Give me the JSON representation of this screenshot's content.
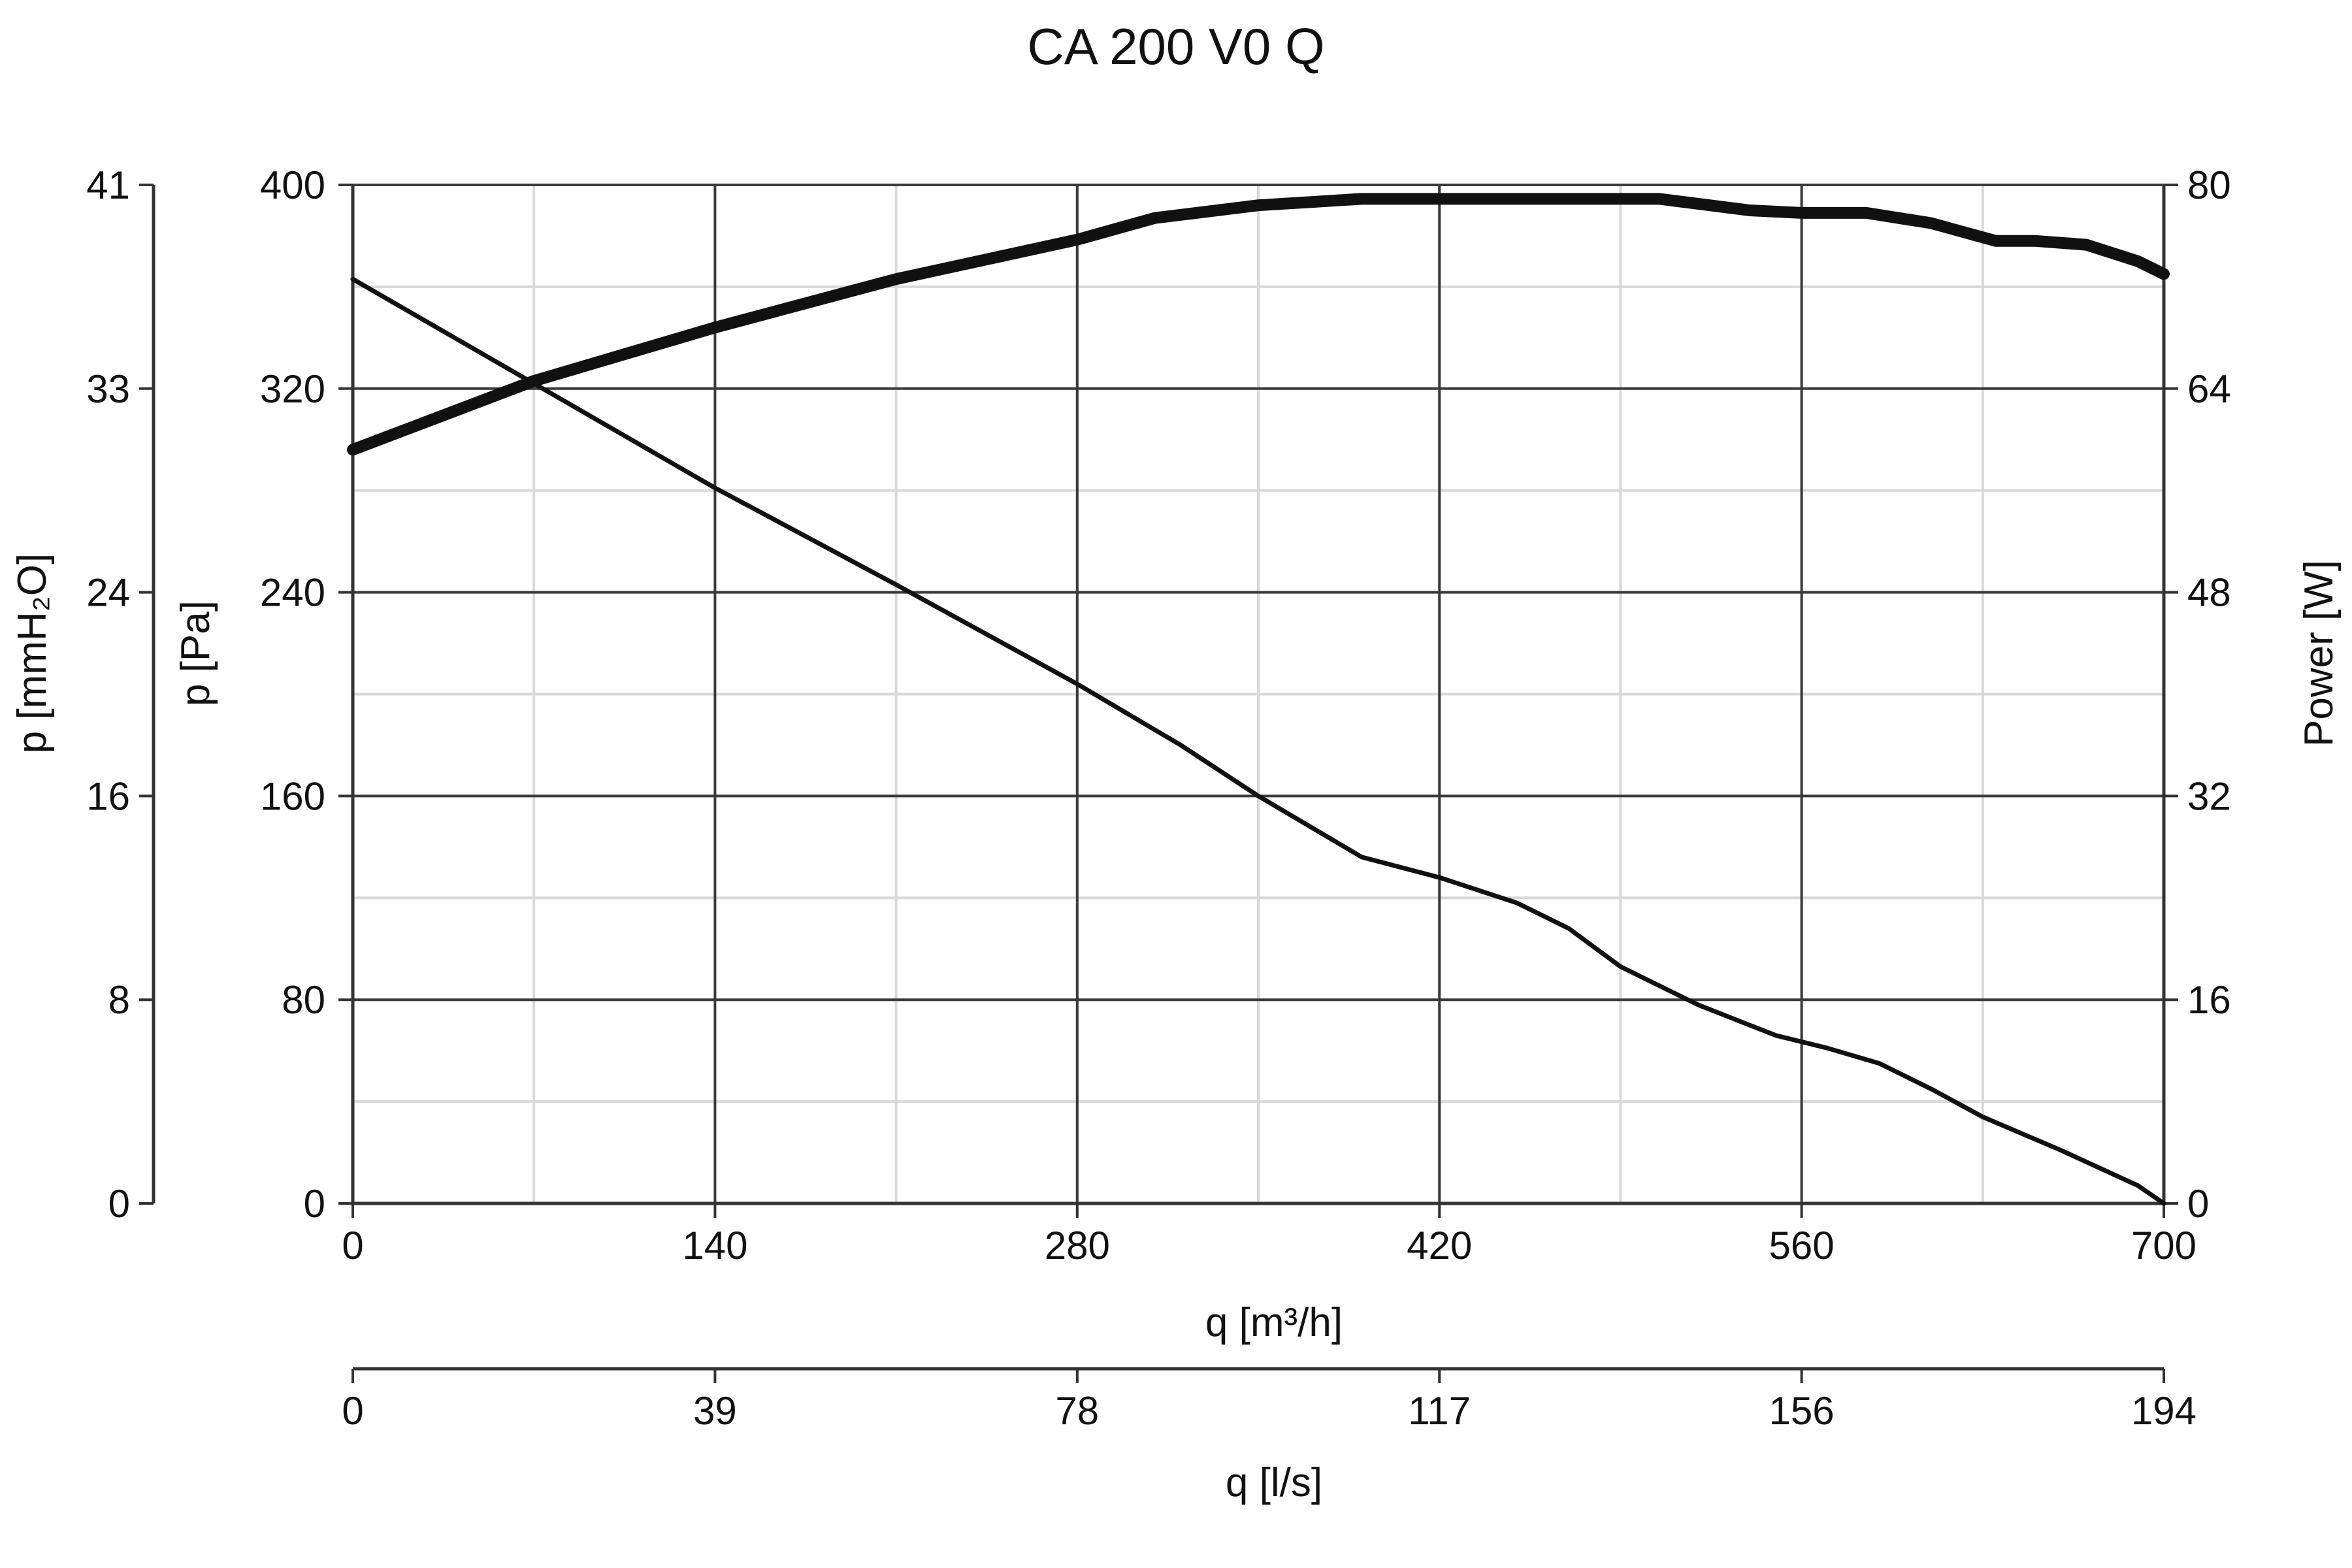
{
  "chart_data": {
    "type": "line",
    "title": "CA 200 V0 Q",
    "xlabel": "q [m³/h]",
    "x2label": "q [l/s]",
    "ylabel": "p [Pa]",
    "y2label": "p [mmH₂O]",
    "y3label": "Power [W]",
    "xlim": [
      0,
      700
    ],
    "ylim": [
      0,
      400
    ],
    "x_ticks": [
      "0",
      "140",
      "280",
      "420",
      "560",
      "700"
    ],
    "x_tick_values": [
      0,
      140,
      280,
      420,
      560,
      700
    ],
    "x2_ticks": [
      "0",
      "39",
      "78",
      "117",
      "156",
      "194"
    ],
    "y_ticks": [
      "0",
      "80",
      "160",
      "240",
      "320",
      "400"
    ],
    "y_tick_values": [
      0,
      80,
      160,
      240,
      320,
      400
    ],
    "y2_ticks": [
      "0",
      "8",
      "16",
      "24",
      "33",
      "41"
    ],
    "y3_ticks": [
      "0",
      "16",
      "32",
      "48",
      "64",
      "80"
    ],
    "y3lim": [
      0,
      80
    ],
    "grid": true,
    "series": [
      {
        "axis": "pressure",
        "values": [
          [
            0,
            363
          ],
          [
            70,
            322
          ],
          [
            140,
            281
          ],
          [
            210,
            243
          ],
          [
            280,
            204
          ],
          [
            320,
            180
          ],
          [
            350,
            160
          ],
          [
            390,
            136
          ],
          [
            420,
            128
          ],
          [
            450,
            118
          ],
          [
            470,
            108
          ],
          [
            490,
            93
          ],
          [
            520,
            78
          ],
          [
            550,
            66
          ],
          [
            570,
            61
          ],
          [
            590,
            55
          ],
          [
            610,
            45
          ],
          [
            630,
            34
          ],
          [
            660,
            21
          ],
          [
            690,
            7
          ],
          [
            700,
            0
          ]
        ]
      },
      {
        "axis": "power",
        "values": [
          [
            0,
            59.2
          ],
          [
            70,
            64.6
          ],
          [
            140,
            68.8
          ],
          [
            210,
            72.6
          ],
          [
            280,
            75.7
          ],
          [
            310,
            77.4
          ],
          [
            350,
            78.4
          ],
          [
            390,
            78.9
          ],
          [
            420,
            78.9
          ],
          [
            460,
            78.9
          ],
          [
            505,
            78.9
          ],
          [
            540,
            78.0
          ],
          [
            560,
            77.8
          ],
          [
            585,
            77.8
          ],
          [
            610,
            77.0
          ],
          [
            635,
            75.6
          ],
          [
            650,
            75.6
          ],
          [
            670,
            75.3
          ],
          [
            690,
            74.0
          ],
          [
            700,
            73.0
          ]
        ]
      }
    ],
    "colors": {
      "line": "#111111",
      "major_grid": "#3a3a3a",
      "minor_grid": "#d9d9d9"
    }
  }
}
